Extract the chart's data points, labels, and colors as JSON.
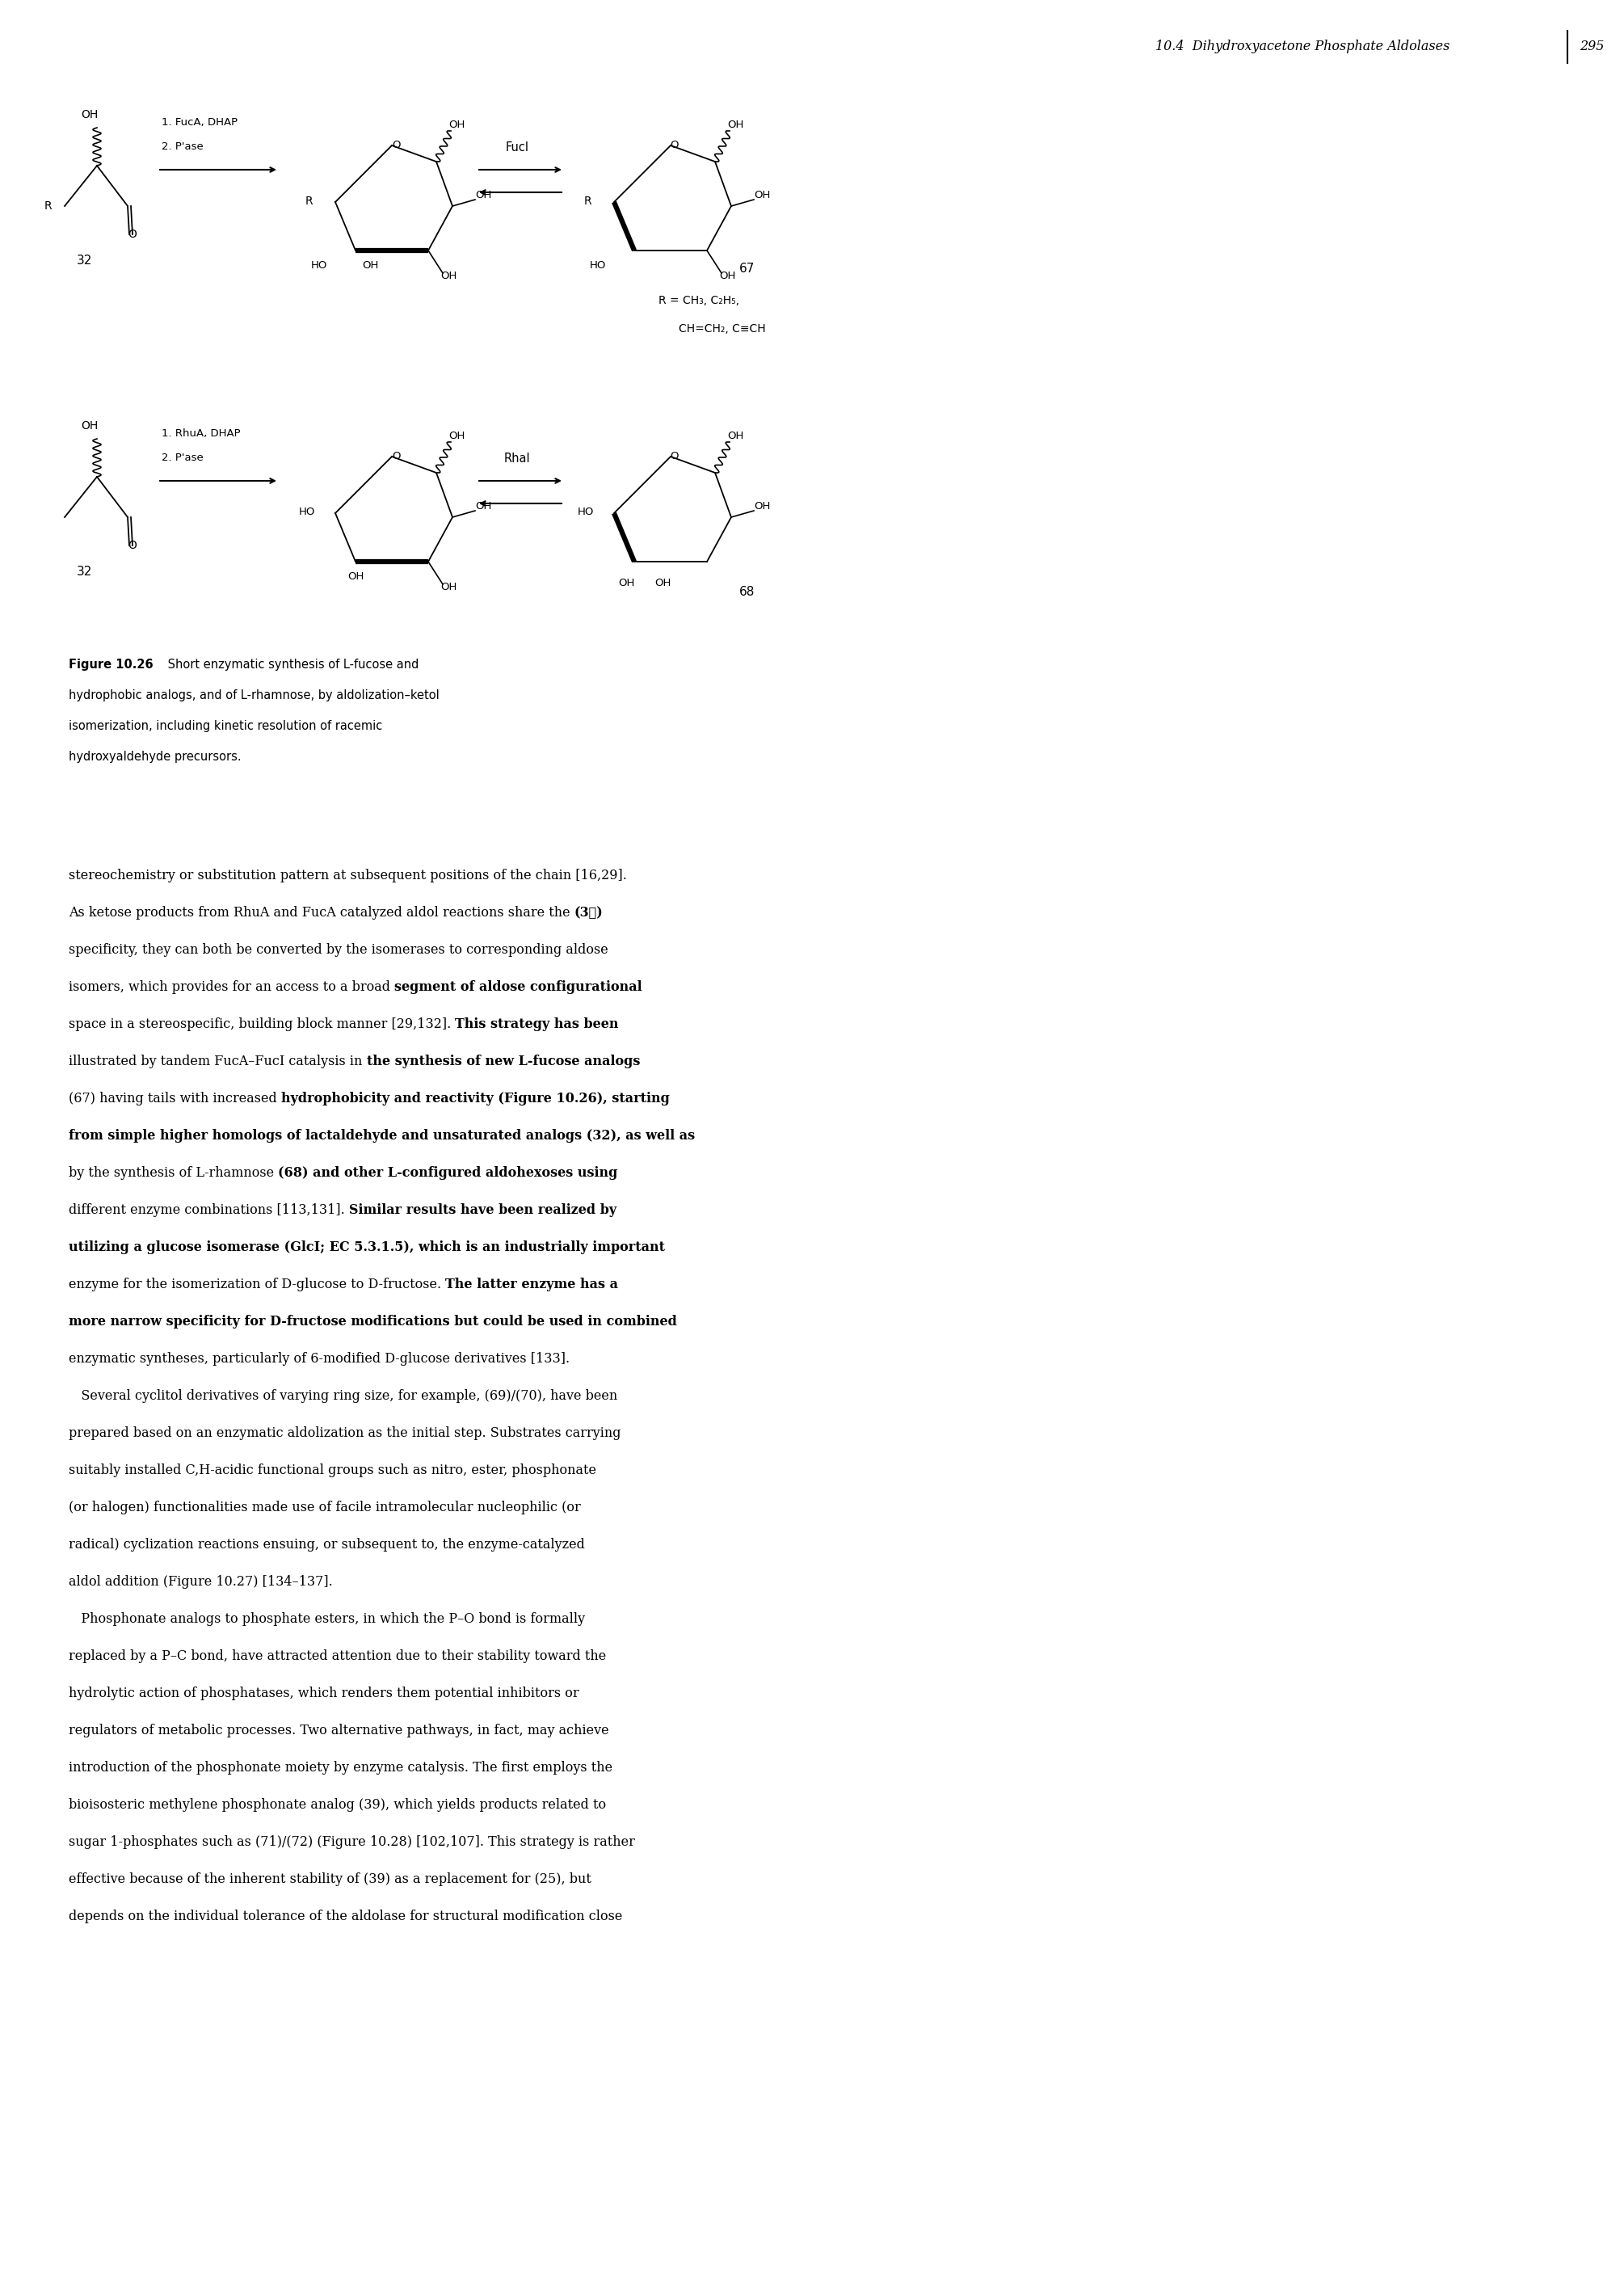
{
  "page_header": "10.4  Dihydroxyacetone Phosphate Aldolases",
  "page_number": "295",
  "figure_caption_bold": "Figure 10.26",
  "figure_caption_lines": [
    " Short enzymatic synthesis of L-fucose and",
    "hydrophobic analogs, and of L-rhamnose, by aldolization–ketol",
    "isomerization, including kinetic resolution of racemic",
    "hydroxyaldehyde precursors."
  ],
  "body_text_lines": [
    "stereochemistry or substitution pattern at subsequent positions of the chain [16,29].",
    "As ketose products from RhuA and FucA catalyzed aldol reactions share the (3ℝ)",
    "specificity, they can both be converted by the isomerases to corresponding aldose",
    "isomers, which provides for an access to a broad segment of aldose configurational",
    "space in a stereospecific, building block manner [29,132]. This strategy has been",
    "illustrated by tandem FucA–FucI catalysis in the synthesis of new L-fucose analogs",
    "(67) having tails with increased hydrophobicity and reactivity (Figure 10.26), starting",
    "from simple higher homologs of lactaldehyde and unsaturated analogs (32), as well as",
    "by the synthesis of L-rhamnose (68) and other L-configured aldohexoses using",
    "different enzyme combinations [113,131]. Similar results have been realized by",
    "utilizing a glucose isomerase (GlcI; EC 5.3.1.5), which is an industrially important",
    "enzyme for the isomerization of D-glucose to D-fructose. The latter enzyme has a",
    "more narrow specificity for D-fructose modifications but could be used in combined",
    "enzymatic syntheses, particularly of 6-modified D-glucose derivatives [133].",
    "   Several cyclitol derivatives of varying ring size, for example, (69)/(70), have been",
    "prepared based on an enzymatic aldolization as the initial step. Substrates carrying",
    "suitably installed C,H-acidic functional groups such as nitro, ester, phosphonate",
    "(or halogen) functionalities made use of facile intramolecular nucleophilic (or",
    "radical) cyclization reactions ensuing, or subsequent to, the enzyme-catalyzed",
    "aldol addition (Figure 10.27) [134–137].",
    "   Phosphonate analogs to phosphate esters, in which the P–O bond is formally",
    "replaced by a P–C bond, have attracted attention due to their stability toward the",
    "hydrolytic action of phosphatases, which renders them potential inhibitors or",
    "regulators of metabolic processes. Two alternative pathways, in fact, may achieve",
    "introduction of the phosphonate moiety by enzyme catalysis. The first employs the",
    "bioisosteric methylene phosphonate analog (39), which yields products related to",
    "sugar 1-phosphates such as (71)/(72) (Figure 10.28) [102,107]. This strategy is rather",
    "effective because of the inherent stability of (39) as a replacement for (25), but",
    "depends on the individual tolerance of the aldolase for structural modification close"
  ],
  "bold_line_segments": {
    "1": [
      [
        "As ketose products from RhuA and FucA catalyzed aldol reactions share the ",
        false
      ],
      [
        "(3ℝ)",
        true
      ]
    ],
    "3": [
      [
        "isomers, which provides for an access to a broad ",
        false
      ],
      [
        "segment of aldose configurational",
        true
      ]
    ],
    "4": [
      [
        "space in a stereospecific, building block manner [29,132]. ",
        false
      ],
      [
        "This strategy has been",
        true
      ]
    ],
    "5": [
      [
        "illustrated by tandem FucA–FucI catalysis in ",
        false
      ],
      [
        "the synthesis of new L-fucose analogs",
        true
      ]
    ],
    "6": [
      [
        "(67) having tails with increased ",
        false
      ],
      [
        "hydrophobicity and reactivity (Figure 10.26), starting",
        true
      ]
    ],
    "7": [
      [
        "from simple higher homologs of lactaldehyde and unsaturated analogs (32), as well as",
        true
      ]
    ],
    "8": [
      [
        "by the synthesis of L-rhamnose ",
        false
      ],
      [
        "(68) and other L-configured aldohexoses using",
        true
      ]
    ],
    "9": [
      [
        "different enzyme combinations [113,131]. ",
        false
      ],
      [
        "Similar results have been realized by",
        true
      ]
    ],
    "10": [
      [
        "utilizing a glucose isomerase (GlcI; EC 5.3.1.5), which is an industrially important",
        true
      ]
    ],
    "11": [
      [
        "enzyme for the isomerization of D-glucose to D-fructose. ",
        false
      ],
      [
        "The latter enzyme has a",
        true
      ]
    ],
    "12": [
      [
        "more narrow specificity for D-fructose modifications but could be used in combined",
        true
      ]
    ]
  },
  "bg": "#ffffff"
}
